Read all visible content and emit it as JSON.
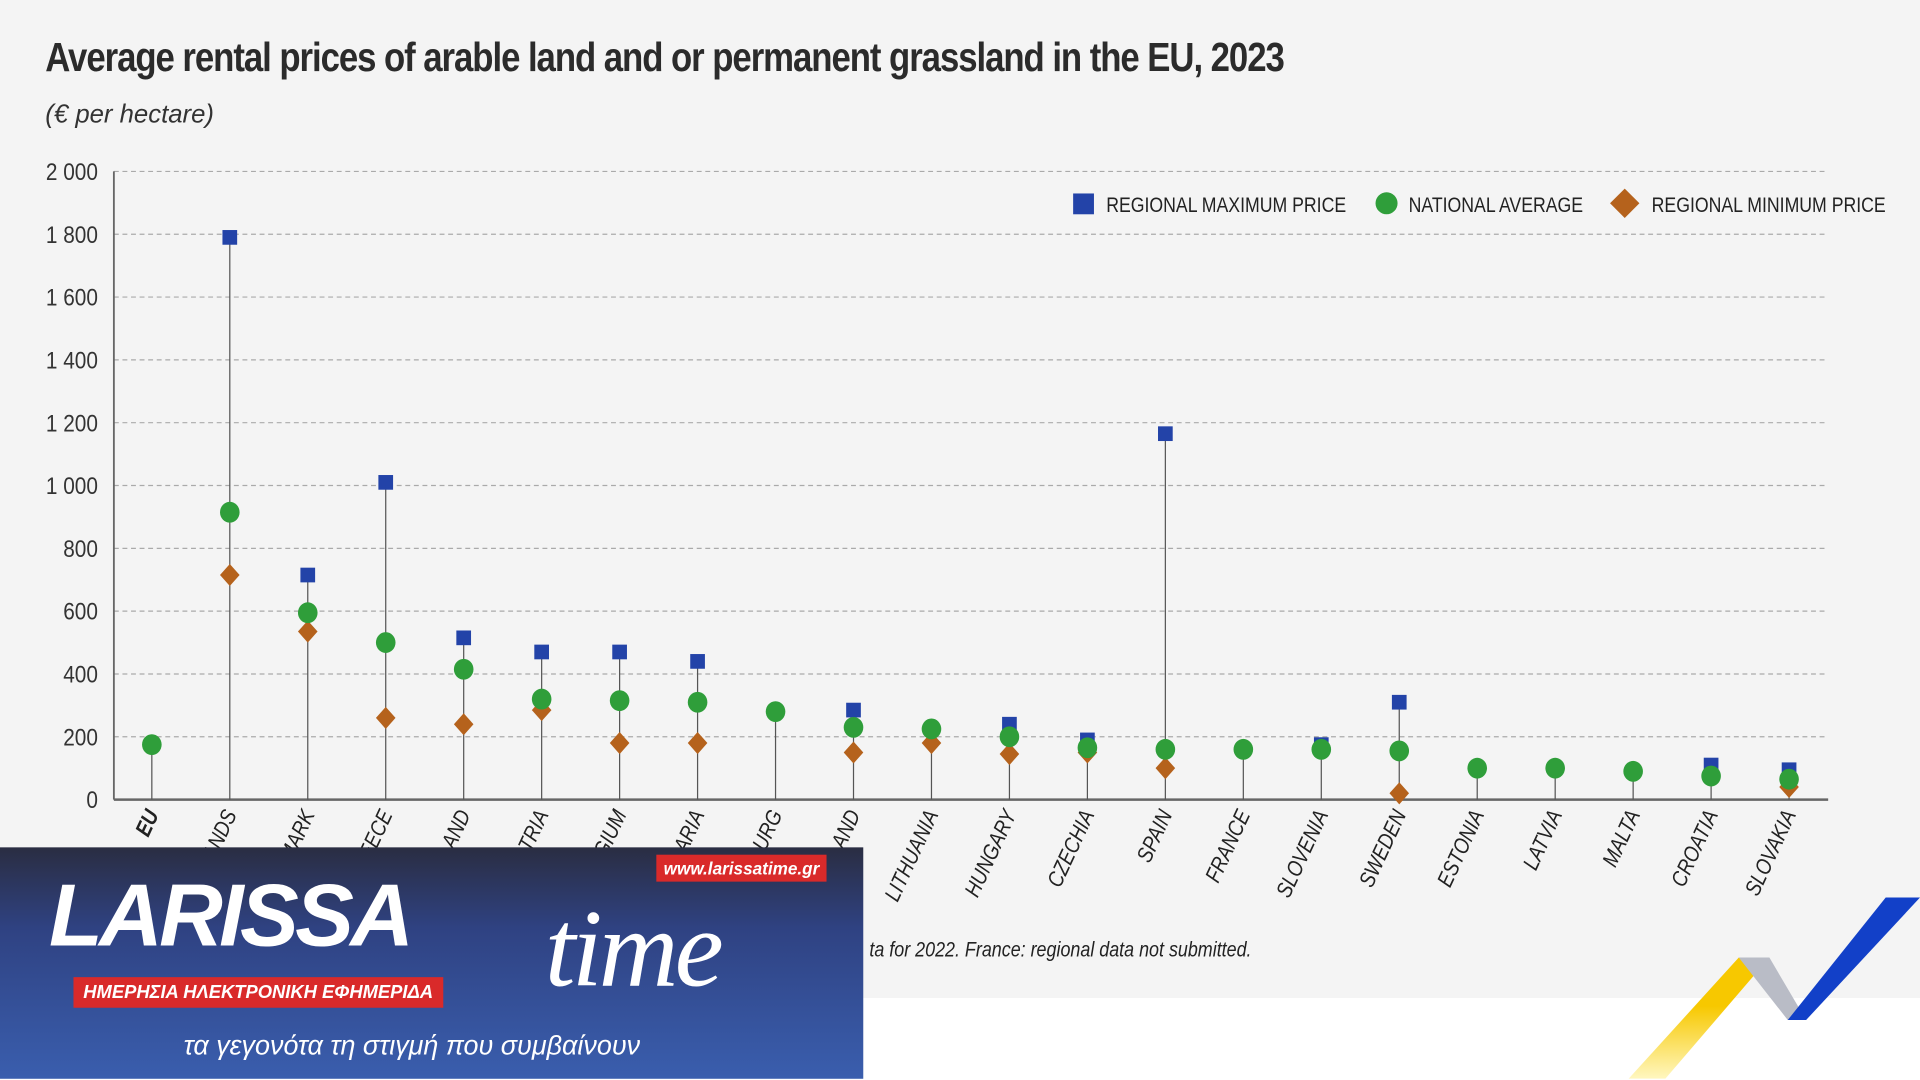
{
  "title": "Average rental prices of arable land and or permanent grassland in the EU, 2023",
  "subtitle": "(€ per hectare)",
  "note": "ta for 2022. France: regional data not submitted.",
  "chart_data": {
    "type": "scatter",
    "ylim": [
      0,
      2000
    ],
    "yticks": [
      0,
      200,
      400,
      600,
      800,
      1000,
      1200,
      1400,
      1600,
      1800,
      2000
    ],
    "ytick_labels": [
      "0",
      "200",
      "400",
      "600",
      "800",
      "1 000",
      "1 200",
      "1 400",
      "1 600",
      "1 800",
      "2 000"
    ],
    "grid": true,
    "legend_position": "top-right",
    "categories": [
      "EU",
      "ANDS",
      "MARK",
      "REECE",
      "LAND",
      "TRIA",
      "GIUM",
      "ARIA",
      "URG",
      "LAND",
      "LITHUANIA",
      "HUNGARY",
      "CZECHIA",
      "SPAIN",
      "FRANCE",
      "SLOVENIA",
      "SWEDEN",
      "ESTONIA",
      "LATVIA",
      "MALTA",
      "CROATIA",
      "SLOVAKIA"
    ],
    "series": [
      {
        "name": "REGIONAL MAXIMUM PRICE",
        "color": "#2343a8",
        "marker": "square",
        "values": [
          null,
          1790,
          715,
          1010,
          515,
          470,
          470,
          440,
          null,
          285,
          null,
          240,
          190,
          1165,
          null,
          175,
          310,
          null,
          null,
          null,
          110,
          95
        ]
      },
      {
        "name": "NATIONAL AVERAGE",
        "color": "#2f9e3a",
        "marker": "circle",
        "values": [
          175,
          915,
          595,
          500,
          415,
          320,
          315,
          310,
          280,
          230,
          225,
          200,
          165,
          160,
          160,
          160,
          155,
          100,
          100,
          90,
          75,
          65
        ]
      },
      {
        "name": "REGIONAL MINIMUM PRICE",
        "color": "#b5621c",
        "marker": "diamond",
        "values": [
          null,
          715,
          535,
          260,
          240,
          285,
          180,
          180,
          null,
          150,
          180,
          145,
          150,
          100,
          null,
          null,
          20,
          null,
          null,
          null,
          null,
          40
        ]
      }
    ]
  },
  "logo": {
    "name": "LARISSA",
    "name2": "time",
    "url": "www.larissatime.gr",
    "tagline": "ΗΜΕΡΗΣΙΑ ΗΛΕΚΤΡΟΝΙΚΗ ΕΦΗΜΕΡΙΔΑ",
    "slogan": "τα γεγονότα τη στιγμή που συμβαίνουν"
  }
}
